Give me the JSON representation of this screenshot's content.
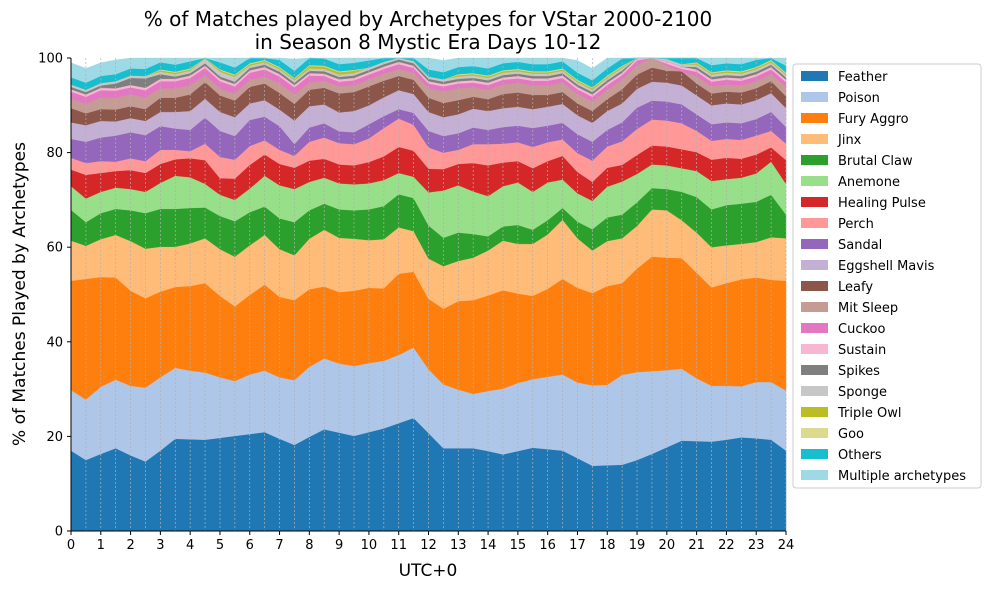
{
  "chart_data": {
    "type": "area",
    "stacked": true,
    "title_line1": "% of Matches played by Archetypes for VStar 2000-2100",
    "title_line2": "in Season 8 Mystic Era Days 10-12",
    "xlabel": "UTC+0",
    "ylabel": "% of Matches Played by Archetypes",
    "xlim": [
      0,
      24
    ],
    "ylim": [
      0,
      100
    ],
    "xticks": [
      "0",
      "1",
      "2",
      "3",
      "4",
      "5",
      "6",
      "7",
      "8",
      "9",
      "10",
      "11",
      "12",
      "13",
      "14",
      "15",
      "16",
      "17",
      "18",
      "19",
      "20",
      "21",
      "22",
      "23",
      "24"
    ],
    "yticks": [
      "0",
      "20",
      "40",
      "60",
      "80",
      "100"
    ],
    "grid": "vertical dashed at each half hour",
    "legend_position": "right, outside",
    "x": [
      0,
      0.5,
      1,
      1.5,
      2,
      2.5,
      3,
      3.5,
      4,
      4.5,
      5,
      5.5,
      6,
      6.5,
      7,
      7.5,
      8,
      8.5,
      9,
      9.5,
      10,
      10.5,
      11,
      11.5,
      12,
      12.5,
      13,
      13.5,
      14,
      14.5,
      15,
      15.5,
      16,
      16.5,
      17,
      17.5,
      18,
      18.5,
      19,
      19.5,
      20,
      20.5,
      21,
      21.5,
      22,
      22.5,
      23,
      23.5,
      24
    ],
    "series": [
      {
        "name": "Feather",
        "color": "#1f77b4",
        "values": [
          17.0,
          15.0,
          16.3,
          17.5,
          16.0,
          14.7,
          17.0,
          19.5,
          19.4,
          19.3,
          19.7,
          20.1,
          20.5,
          20.9,
          19.5,
          18.2,
          19.9,
          21.5,
          20.8,
          20.1,
          20.9,
          21.7,
          22.8,
          23.9,
          20.7,
          17.5,
          17.5,
          17.5,
          16.9,
          16.2,
          16.9,
          17.6,
          17.3,
          17.0,
          15.4,
          13.8,
          13.9,
          14.0,
          15.0,
          16.3,
          17.7,
          19.1,
          19.0,
          18.9,
          19.3,
          19.8,
          19.6,
          19.3,
          17.0
        ]
      },
      {
        "name": "Poison",
        "color": "#aec7e8",
        "values": [
          12.8,
          12.8,
          14.2,
          14.5,
          14.7,
          15.6,
          15.5,
          15.0,
          14.5,
          14.2,
          12.8,
          11.6,
          12.6,
          13.0,
          13.0,
          13.7,
          14.8,
          15.0,
          14.6,
          14.8,
          14.6,
          14.3,
          14.4,
          14.9,
          13.5,
          13.5,
          12.4,
          11.5,
          12.7,
          13.9,
          14.4,
          14.5,
          15.3,
          16.1,
          16.0,
          17.0,
          17.0,
          19.0,
          18.6,
          17.5,
          16.3,
          15.2,
          13.3,
          11.8,
          11.4,
          10.8,
          11.9,
          12.2,
          12.7
        ]
      },
      {
        "name": "Fury Aggro",
        "color": "#ff7f0e",
        "values": [
          23.1,
          25.5,
          23.2,
          21.6,
          20.1,
          18.9,
          18.1,
          17.1,
          17.9,
          18.9,
          17.2,
          15.8,
          16.8,
          18.2,
          17.0,
          16.9,
          16.4,
          15.2,
          15.1,
          15.9,
          15.9,
          15.3,
          17.2,
          16.0,
          14.9,
          16.0,
          18.7,
          19.8,
          20.2,
          20.8,
          18.9,
          17.6,
          18.6,
          20.2,
          20.0,
          19.5,
          20.9,
          19.4,
          21.9,
          24.2,
          23.8,
          23.4,
          22.3,
          20.8,
          21.7,
          22.6,
          22.1,
          21.6,
          23.2
        ]
      },
      {
        "name": "Jinx",
        "color": "#ffbb78",
        "values": [
          8.5,
          7.0,
          8.0,
          9.0,
          10.5,
          10.5,
          9.5,
          8.5,
          9.0,
          9.5,
          9.9,
          10.5,
          10.5,
          10.5,
          10.1,
          9.5,
          10.7,
          12.0,
          11.5,
          11.0,
          10.1,
          10.4,
          9.8,
          8.6,
          8.5,
          9.0,
          8.5,
          9.0,
          9.5,
          10.5,
          10.5,
          11.0,
          11.5,
          12.5,
          10.5,
          9.0,
          9.5,
          9.5,
          9.0,
          10.0,
          10.0,
          8.0,
          8.5,
          8.5,
          8.0,
          7.5,
          7.5,
          9.0,
          9.0
        ]
      },
      {
        "name": "Brutal Claw",
        "color": "#2ca02c",
        "values": [
          6.5,
          5.0,
          5.5,
          5.5,
          6.5,
          7.5,
          8.0,
          8.0,
          7.5,
          6.5,
          7.0,
          7.5,
          7.0,
          6.0,
          6.5,
          7.0,
          6.0,
          5.5,
          6.0,
          6.0,
          6.5,
          7.0,
          7.0,
          7.0,
          7.0,
          6.0,
          6.0,
          5.0,
          3.0,
          3.0,
          4.0,
          3.0,
          3.0,
          2.5,
          3.5,
          4.5,
          5.0,
          5.0,
          5.0,
          4.5,
          4.5,
          6.0,
          7.5,
          8.0,
          8.5,
          8.5,
          8.5,
          9.0,
          5.0
        ]
      },
      {
        "name": "Anemone",
        "color": "#98df8a",
        "values": [
          5.0,
          5.0,
          4.5,
          4.5,
          4.5,
          4.5,
          5.5,
          7.0,
          6.5,
          5.0,
          4.5,
          4.5,
          5.0,
          6.5,
          7.0,
          7.0,
          6.0,
          5.5,
          5.5,
          5.5,
          5.5,
          5.5,
          4.5,
          4.5,
          7.0,
          10.0,
          10.0,
          9.0,
          8.5,
          8.5,
          9.0,
          8.0,
          8.0,
          6.0,
          6.0,
          6.0,
          6.5,
          7.0,
          6.0,
          5.0,
          5.0,
          5.0,
          5.5,
          6.0,
          5.5,
          5.5,
          6.0,
          7.0,
          6.5
        ]
      },
      {
        "name": "Healing Pulse",
        "color": "#d62728",
        "values": [
          3.5,
          5.0,
          4.0,
          3.5,
          4.0,
          4.0,
          4.0,
          3.5,
          4.0,
          5.0,
          3.5,
          4.5,
          5.0,
          4.5,
          4.5,
          4.5,
          4.5,
          4.0,
          4.0,
          4.0,
          4.5,
          5.0,
          5.5,
          5.5,
          5.0,
          4.5,
          4.5,
          6.0,
          6.5,
          5.0,
          4.5,
          5.0,
          4.5,
          5.0,
          4.5,
          4.0,
          4.0,
          3.5,
          4.0,
          4.0,
          4.0,
          4.0,
          4.0,
          4.5,
          4.5,
          4.0,
          4.0,
          3.0,
          5.0
        ]
      },
      {
        "name": "Perch",
        "color": "#ff9896",
        "values": [
          2.5,
          2.5,
          2.5,
          2.0,
          2.5,
          2.5,
          3.0,
          2.0,
          1.5,
          3.5,
          4.5,
          4.0,
          4.0,
          3.0,
          3.0,
          2.5,
          4.0,
          4.5,
          4.5,
          4.5,
          5.0,
          6.0,
          6.0,
          5.5,
          4.5,
          3.5,
          3.0,
          4.0,
          4.5,
          4.0,
          4.0,
          4.5,
          4.0,
          3.5,
          4.0,
          4.5,
          4.5,
          5.0,
          5.5,
          5.5,
          5.5,
          5.5,
          4.5,
          4.0,
          4.0,
          4.0,
          4.0,
          3.5,
          3.5
        ]
      },
      {
        "name": "Sandal",
        "color": "#9467bd",
        "values": [
          4.0,
          4.5,
          5.0,
          5.5,
          5.5,
          5.5,
          5.0,
          4.5,
          4.5,
          5.5,
          5.5,
          5.0,
          5.5,
          5.0,
          5.0,
          2.5,
          3.0,
          3.0,
          2.5,
          2.5,
          3.0,
          2.5,
          2.0,
          2.5,
          3.5,
          3.5,
          3.5,
          3.5,
          3.0,
          3.5,
          3.5,
          4.0,
          3.5,
          3.5,
          4.0,
          4.0,
          3.5,
          4.0,
          4.5,
          4.0,
          4.0,
          4.0,
          3.5,
          3.5,
          3.5,
          3.5,
          3.5,
          4.0,
          3.5
        ]
      },
      {
        "name": "Eggshell Mavis",
        "color": "#c5b0d5",
        "values": [
          3.5,
          3.5,
          3.5,
          3.0,
          3.0,
          3.0,
          3.0,
          3.5,
          4.0,
          4.0,
          4.0,
          4.0,
          3.5,
          3.5,
          3.5,
          5.0,
          4.5,
          4.0,
          4.0,
          4.5,
          4.0,
          4.0,
          4.0,
          4.0,
          4.0,
          4.0,
          4.0,
          4.0,
          4.0,
          4.0,
          4.0,
          4.0,
          4.0,
          4.0,
          4.0,
          4.0,
          4.0,
          4.0,
          4.0,
          4.0,
          4.0,
          4.0,
          4.0,
          4.0,
          4.0,
          4.0,
          4.0,
          4.0,
          4.0
        ]
      },
      {
        "name": "Leafy",
        "color": "#8c564b",
        "values": [
          3.0,
          2.5,
          2.5,
          2.5,
          2.5,
          2.5,
          3.0,
          3.0,
          3.5,
          3.5,
          3.5,
          3.5,
          3.5,
          3.5,
          3.5,
          3.5,
          3.5,
          3.5,
          4.0,
          4.0,
          4.0,
          3.5,
          3.0,
          3.0,
          3.0,
          3.0,
          3.0,
          2.5,
          2.5,
          3.0,
          3.0,
          3.0,
          2.5,
          2.5,
          2.5,
          2.5,
          2.5,
          3.0,
          3.0,
          3.0,
          2.5,
          3.0,
          2.5,
          2.5,
          2.5,
          2.5,
          2.5,
          2.5,
          2.5
        ]
      },
      {
        "name": "Mit Sleep",
        "color": "#c49c94",
        "values": [
          2.0,
          2.0,
          2.5,
          2.5,
          2.5,
          2.5,
          2.0,
          2.0,
          2.0,
          1.5,
          1.5,
          1.5,
          1.5,
          1.5,
          2.0,
          2.0,
          1.5,
          1.5,
          1.5,
          1.5,
          1.5,
          1.5,
          1.5,
          1.5,
          2.0,
          2.5,
          2.5,
          2.0,
          2.0,
          2.0,
          2.0,
          2.0,
          2.0,
          2.0,
          2.0,
          2.0,
          2.0,
          2.0,
          2.0,
          2.0,
          1.0,
          0.0,
          1.5,
          1.5,
          1.5,
          1.5,
          1.5,
          1.5,
          2.0
        ]
      },
      {
        "name": "Cuckoo",
        "color": "#e377c2",
        "values": [
          1.5,
          1.5,
          1.5,
          1.5,
          1.5,
          1.5,
          1.5,
          1.5,
          1.5,
          1.5,
          1.5,
          1.5,
          1.5,
          1.5,
          1.5,
          1.5,
          1.5,
          1.0,
          1.0,
          1.0,
          1.0,
          1.0,
          1.0,
          1.0,
          1.0,
          1.0,
          1.0,
          1.0,
          1.0,
          1.0,
          1.0,
          1.0,
          1.0,
          1.0,
          1.0,
          1.0,
          1.0,
          1.0,
          1.0,
          1.0,
          0.5,
          0.5,
          1.0,
          1.0,
          1.0,
          1.0,
          1.0,
          1.0,
          1.0
        ]
      },
      {
        "name": "Sustain",
        "color": "#f7b6d2",
        "values": [
          0.5,
          0.5,
          0.5,
          0.5,
          0.5,
          0.5,
          0.5,
          0.5,
          0.5,
          0.5,
          0.5,
          0.5,
          0.5,
          0.5,
          0.5,
          0.5,
          0.5,
          0.5,
          0.5,
          0.5,
          0.5,
          0.5,
          0.5,
          0.5,
          0.5,
          0.5,
          0.5,
          0.5,
          0.5,
          0.5,
          0.5,
          0.5,
          0.5,
          0.5,
          0.5,
          0.5,
          0.5,
          0.5,
          0.5,
          0.5,
          0.5,
          0.5,
          0.5,
          0.5,
          0.5,
          0.5,
          0.5,
          0.5,
          0.5
        ]
      },
      {
        "name": "Spikes",
        "color": "#7f7f7f",
        "values": [
          0.5,
          0.5,
          0.5,
          1.0,
          1.5,
          2.0,
          1.0,
          0.5,
          0.5,
          0.5,
          0.5,
          0.5,
          0.5,
          0.5,
          0.5,
          0.5,
          0.5,
          0.5,
          0.5,
          0.5,
          0.5,
          0.5,
          0.5,
          0.5,
          0.5,
          0.5,
          0.5,
          0.5,
          0.5,
          0.5,
          0.5,
          0.5,
          0.5,
          0.5,
          0.5,
          0.5,
          0.5,
          0.5,
          0.5,
          0.5,
          0.0,
          0.0,
          0.5,
          0.5,
          0.5,
          0.5,
          0.5,
          0.5,
          0.5
        ]
      },
      {
        "name": "Sponge",
        "color": "#c7c7c7",
        "values": [
          0.5,
          0.5,
          0.5,
          0.5,
          0.5,
          0.5,
          0.5,
          0.5,
          0.5,
          1.0,
          1.0,
          1.0,
          0.5,
          0.5,
          0.5,
          0.5,
          0.5,
          0.5,
          0.5,
          0.5,
          0.5,
          0.5,
          0.5,
          0.5,
          0.5,
          0.5,
          0.5,
          0.5,
          0.5,
          0.5,
          0.5,
          0.5,
          0.5,
          0.5,
          0.5,
          0.5,
          0.5,
          0.5,
          0.5,
          0.5,
          0.5,
          0.5,
          0.5,
          0.5,
          0.5,
          0.5,
          0.5,
          0.5,
          0.5
        ]
      },
      {
        "name": "Triple Owl",
        "color": "#bcbd22",
        "values": [
          0.0,
          0.0,
          0.0,
          0.0,
          0.0,
          0.0,
          0.3,
          0.3,
          0.3,
          0.3,
          0.3,
          0.3,
          0.3,
          0.3,
          0.3,
          0.3,
          0.5,
          0.5,
          0.5,
          0.5,
          0.0,
          0.0,
          0.0,
          0.0,
          0.0,
          0.0,
          0.3,
          0.3,
          0.3,
          0.3,
          0.3,
          0.3,
          0.3,
          0.3,
          0.3,
          0.3,
          0.3,
          0.3,
          0.3,
          0.3,
          0.0,
          0.0,
          0.3,
          0.3,
          0.3,
          0.3,
          0.3,
          0.3,
          0.3
        ]
      },
      {
        "name": "Goo",
        "color": "#dbdb8d",
        "values": [
          0.0,
          0.0,
          0.0,
          0.0,
          0.0,
          0.0,
          0.2,
          0.2,
          0.2,
          0.2,
          0.2,
          0.2,
          0.2,
          0.2,
          0.2,
          0.2,
          0.2,
          0.2,
          0.2,
          0.2,
          0.0,
          0.0,
          0.0,
          0.0,
          0.0,
          0.0,
          0.2,
          0.2,
          0.2,
          0.2,
          0.2,
          0.2,
          0.2,
          0.2,
          0.2,
          0.2,
          0.2,
          0.2,
          0.2,
          0.2,
          0.0,
          0.0,
          0.2,
          0.2,
          0.2,
          0.2,
          0.2,
          0.2,
          0.2
        ]
      },
      {
        "name": "Others",
        "color": "#17becf",
        "values": [
          1.5,
          1.5,
          1.5,
          1.5,
          1.5,
          1.5,
          1.5,
          1.5,
          1.5,
          1.5,
          1.5,
          1.5,
          1.5,
          1.5,
          1.5,
          1.5,
          1.5,
          1.5,
          1.5,
          1.5,
          1.5,
          1.5,
          1.5,
          1.5,
          1.5,
          1.5,
          1.5,
          1.5,
          1.5,
          1.5,
          1.5,
          1.5,
          1.5,
          1.5,
          1.5,
          1.5,
          1.5,
          1.5,
          1.5,
          1.5,
          1.5,
          1.5,
          1.5,
          1.5,
          1.5,
          1.5,
          1.5,
          1.5,
          1.5
        ]
      },
      {
        "name": "Multiple archetypes",
        "color": "#9edae5",
        "values": [
          3.1,
          3.0,
          2.8,
          3.0,
          3.0,
          3.0,
          2.4,
          2.4,
          2.4,
          2.5,
          2.6,
          2.5,
          2.6,
          2.5,
          2.6,
          2.5,
          2.4,
          2.5,
          2.6,
          2.5,
          2.6,
          2.5,
          2.6,
          2.5,
          2.6,
          2.5,
          2.6,
          2.5,
          2.6,
          2.5,
          2.6,
          2.5,
          2.6,
          2.5,
          2.6,
          2.5,
          2.6,
          2.5,
          2.6,
          2.5,
          2.6,
          2.5,
          2.6,
          2.5,
          2.6,
          2.5,
          2.6,
          2.5,
          2.6
        ]
      }
    ]
  }
}
